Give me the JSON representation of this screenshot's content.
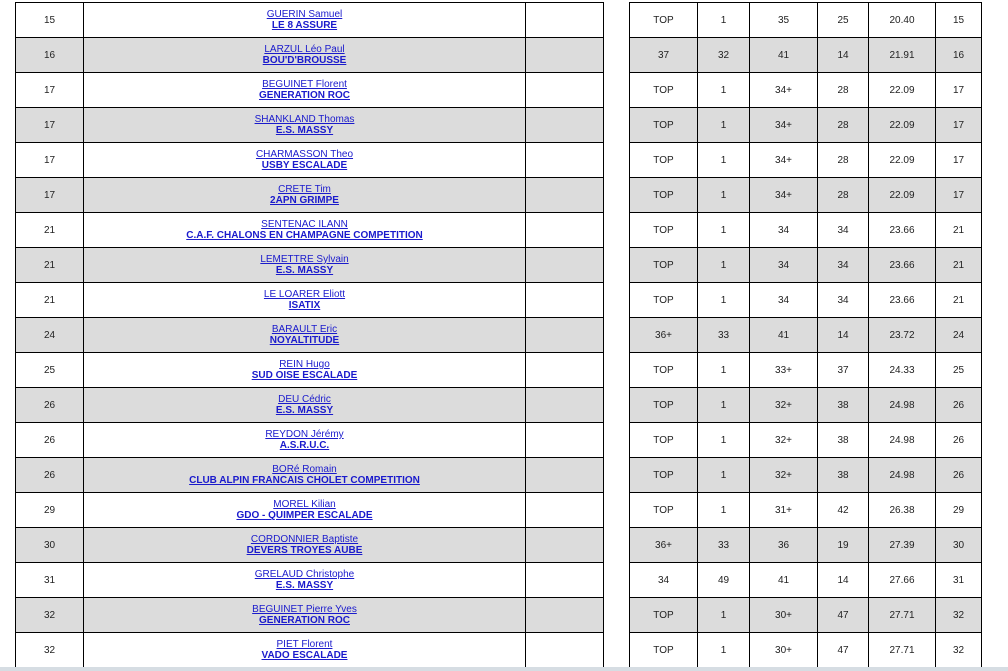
{
  "colors": {
    "row_alt": "#dcdcdc",
    "link": "#1a1acc"
  },
  "rows": [
    {
      "rank": "15",
      "name": "GUERIN Samuel",
      "club": "LE 8 ASSURE",
      "r": [
        "TOP",
        "1",
        "35",
        "25",
        "20.40",
        "15"
      ]
    },
    {
      "rank": "16",
      "name": "LARZUL Léo Paul",
      "club": "BOU'D'BROUSSE",
      "r": [
        "37",
        "32",
        "41",
        "14",
        "21.91",
        "16"
      ]
    },
    {
      "rank": "17",
      "name": "BEGUINET Florent",
      "club": "GENERATION ROC",
      "r": [
        "TOP",
        "1",
        "34+",
        "28",
        "22.09",
        "17"
      ]
    },
    {
      "rank": "17",
      "name": "SHANKLAND Thomas",
      "club": "E.S. MASSY",
      "r": [
        "TOP",
        "1",
        "34+",
        "28",
        "22.09",
        "17"
      ]
    },
    {
      "rank": "17",
      "name": "CHARMASSON Theo",
      "club": "USBY ESCALADE",
      "r": [
        "TOP",
        "1",
        "34+",
        "28",
        "22.09",
        "17"
      ]
    },
    {
      "rank": "17",
      "name": "CRETE Tim",
      "club": "2APN GRIMPE",
      "r": [
        "TOP",
        "1",
        "34+",
        "28",
        "22.09",
        "17"
      ]
    },
    {
      "rank": "21",
      "name": "SENTENAC ILANN",
      "club": "C.A.F. CHALONS EN CHAMPAGNE COMPETITION",
      "r": [
        "TOP",
        "1",
        "34",
        "34",
        "23.66",
        "21"
      ]
    },
    {
      "rank": "21",
      "name": "LEMETTRE Sylvain",
      "club": "E.S. MASSY",
      "r": [
        "TOP",
        "1",
        "34",
        "34",
        "23.66",
        "21"
      ]
    },
    {
      "rank": "21",
      "name": "LE LOARER Eliott",
      "club": "ISATIX",
      "r": [
        "TOP",
        "1",
        "34",
        "34",
        "23.66",
        "21"
      ]
    },
    {
      "rank": "24",
      "name": "BARAULT Eric",
      "club": "NOYALTITUDE",
      "r": [
        "36+",
        "33",
        "41",
        "14",
        "23.72",
        "24"
      ]
    },
    {
      "rank": "25",
      "name": "REIN Hugo",
      "club": "SUD OISE ESCALADE",
      "r": [
        "TOP",
        "1",
        "33+",
        "37",
        "24.33",
        "25"
      ]
    },
    {
      "rank": "26",
      "name": "DEU Cédric",
      "club": "E.S. MASSY",
      "r": [
        "TOP",
        "1",
        "32+",
        "38",
        "24.98",
        "26"
      ]
    },
    {
      "rank": "26",
      "name": "REYDON Jérémy",
      "club": "A.S.R.U.C.",
      "r": [
        "TOP",
        "1",
        "32+",
        "38",
        "24.98",
        "26"
      ]
    },
    {
      "rank": "26",
      "name": "BORé Romain",
      "club": "CLUB ALPIN FRANCAIS CHOLET COMPETITION",
      "r": [
        "TOP",
        "1",
        "32+",
        "38",
        "24.98",
        "26"
      ]
    },
    {
      "rank": "29",
      "name": "MOREL Kilian",
      "club": "GDO - QUIMPER ESCALADE",
      "r": [
        "TOP",
        "1",
        "31+",
        "42",
        "26.38",
        "29"
      ]
    },
    {
      "rank": "30",
      "name": "CORDONNIER Baptiste",
      "club": "DEVERS TROYES AUBE",
      "r": [
        "36+",
        "33",
        "36",
        "19",
        "27.39",
        "30"
      ]
    },
    {
      "rank": "31",
      "name": "GRELAUD Christophe",
      "club": "E.S. MASSY",
      "r": [
        "34",
        "49",
        "41",
        "14",
        "27.66",
        "31"
      ]
    },
    {
      "rank": "32",
      "name": "BEGUINET Pierre Yves",
      "club": "GENERATION ROC",
      "r": [
        "TOP",
        "1",
        "30+",
        "47",
        "27.71",
        "32"
      ]
    },
    {
      "rank": "32",
      "name": "PIET Florent",
      "club": "VADO ESCALADE",
      "r": [
        "TOP",
        "1",
        "30+",
        "47",
        "27.71",
        "32"
      ]
    }
  ]
}
